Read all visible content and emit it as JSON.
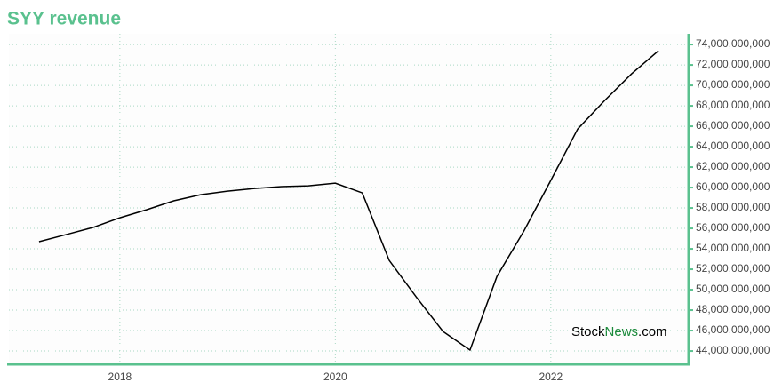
{
  "chart_data": {
    "type": "line",
    "title": "SYY revenue",
    "watermark": [
      "Stock",
      "News",
      ".com"
    ],
    "x": [
      2017.25,
      2017.5,
      2017.75,
      2018.0,
      2018.25,
      2018.5,
      2018.75,
      2019.0,
      2019.25,
      2019.5,
      2019.75,
      2020.0,
      2020.25,
      2020.5,
      2020.75,
      2021.0,
      2021.25,
      2021.5,
      2021.75,
      2022.0,
      2022.25,
      2022.5,
      2022.75,
      2023.0
    ],
    "series": [
      {
        "name": "SYY revenue",
        "color": "#000000",
        "values": [
          54700000000,
          55390000000,
          56090000000,
          57040000000,
          57830000000,
          58700000000,
          59300000000,
          59650000000,
          59910000000,
          60090000000,
          60170000000,
          60430000000,
          59480000000,
          52870000000,
          49300000000,
          45910000000,
          44090000000,
          51300000000,
          55740000000,
          60700000000,
          65740000000,
          68520000000,
          71130000000,
          73390000000
        ]
      }
    ],
    "xlim": [
      2016.97,
      2023.28
    ],
    "xticks": [
      2018,
      2020,
      2022
    ],
    "ylim": [
      42700000000,
      75050000000
    ],
    "yticks": [
      {
        "value": 44000000000,
        "label": "44,000,000,000"
      },
      {
        "value": 46000000000,
        "label": "46,000,000,000"
      },
      {
        "value": 48000000000,
        "label": "48,000,000,000"
      },
      {
        "value": 50000000000,
        "label": "50,000,000,000"
      },
      {
        "value": 52000000000,
        "label": "52,000,000,000"
      },
      {
        "value": 54000000000,
        "label": "54,000,000,000"
      },
      {
        "value": 56000000000,
        "label": "56,000,000,000"
      },
      {
        "value": 58000000000,
        "label": "58,000,000,000"
      },
      {
        "value": 60000000000,
        "label": "60,000,000,000"
      },
      {
        "value": 62000000000,
        "label": "62,000,000,000"
      },
      {
        "value": 64000000000,
        "label": "64,000,000,000"
      },
      {
        "value": 66000000000,
        "label": "66,000,000,000"
      },
      {
        "value": 68000000000,
        "label": "68,000,000,000"
      },
      {
        "value": 70000000000,
        "label": "70,000,000,000"
      },
      {
        "value": 72000000000,
        "label": "72,000,000,000"
      },
      {
        "value": 74000000000,
        "label": "74,000,000,000"
      }
    ],
    "grid": true,
    "axis_color": "#5ac18e"
  }
}
